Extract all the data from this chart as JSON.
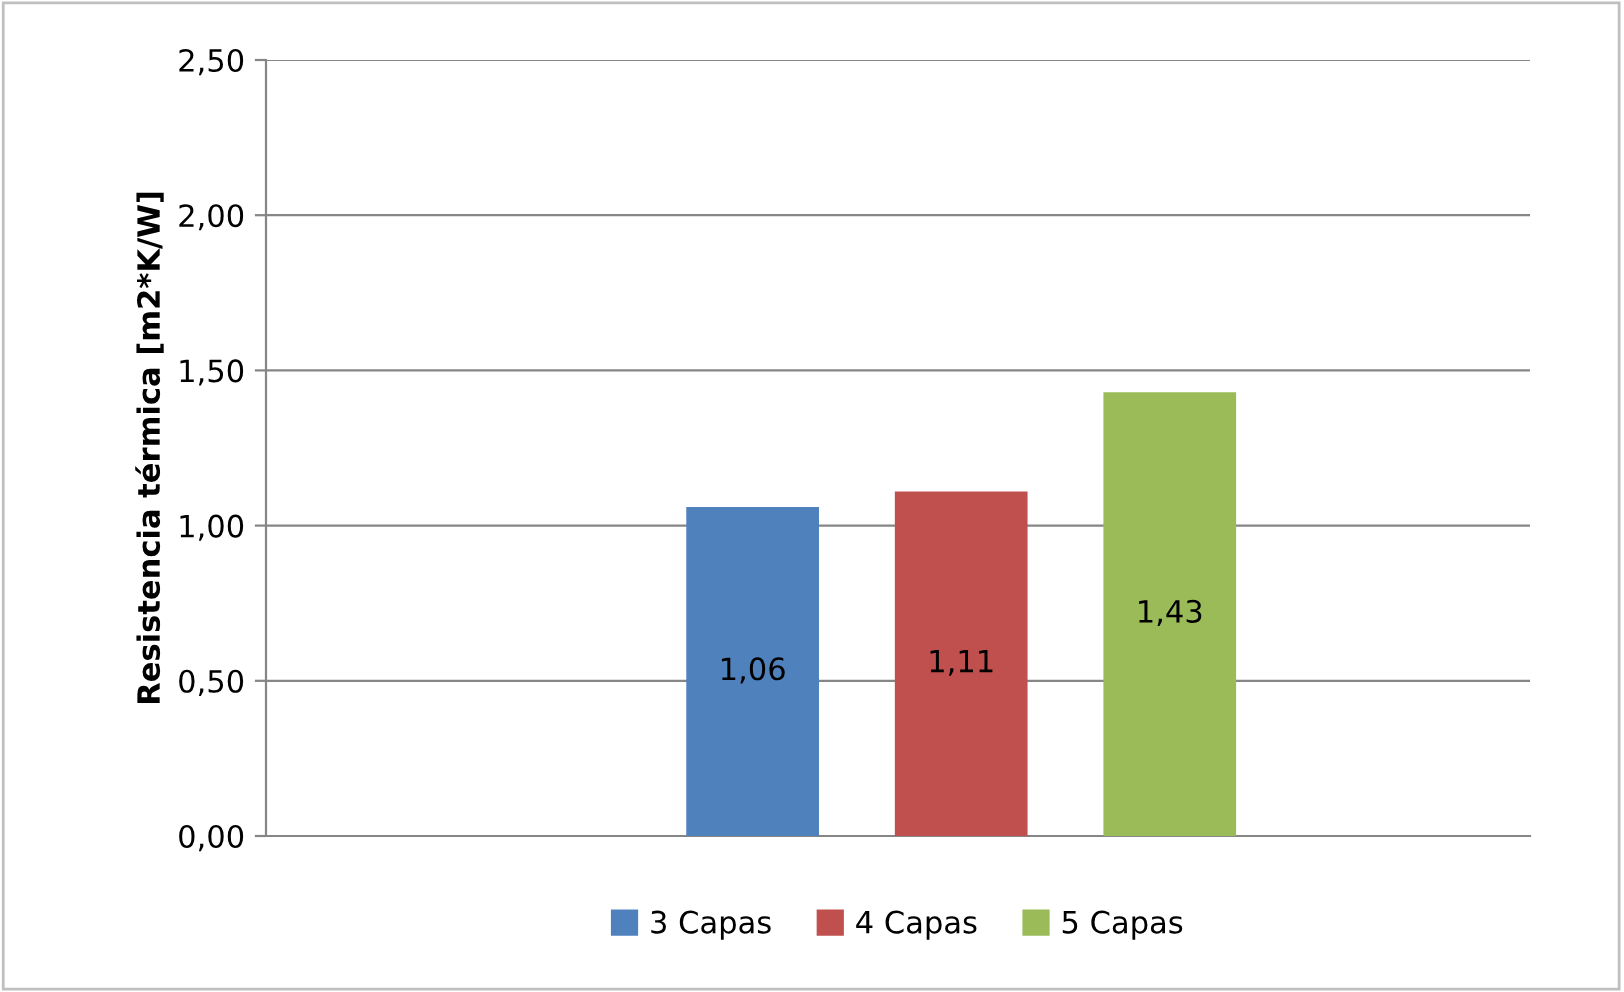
{
  "chart_data": {
    "type": "bar",
    "ylabel": "Resistencia térmica [m2*K/W]",
    "categories": [
      null
    ],
    "series": [
      {
        "name": "3 Capas",
        "color": "#4f81bd",
        "values": [
          1.06
        ],
        "value_labels": [
          "1,06"
        ]
      },
      {
        "name": "4 Capas",
        "color": "#c0504d",
        "values": [
          1.11
        ],
        "value_labels": [
          "1,11"
        ]
      },
      {
        "name": "5 Capas",
        "color": "#9bbb59",
        "values": [
          1.43
        ],
        "value_labels": [
          "1,43"
        ]
      }
    ],
    "ylim": [
      0,
      2.5
    ],
    "yticks": [
      {
        "value": 0,
        "label": "0,00"
      },
      {
        "value": 0.5,
        "label": "0,50"
      },
      {
        "value": 1,
        "label": "1,00"
      },
      {
        "value": 1.5,
        "label": "1,50"
      },
      {
        "value": 2,
        "label": "2,00"
      },
      {
        "value": 2.5,
        "label": "2,50"
      }
    ],
    "grid": "y",
    "legend": "bottom"
  }
}
